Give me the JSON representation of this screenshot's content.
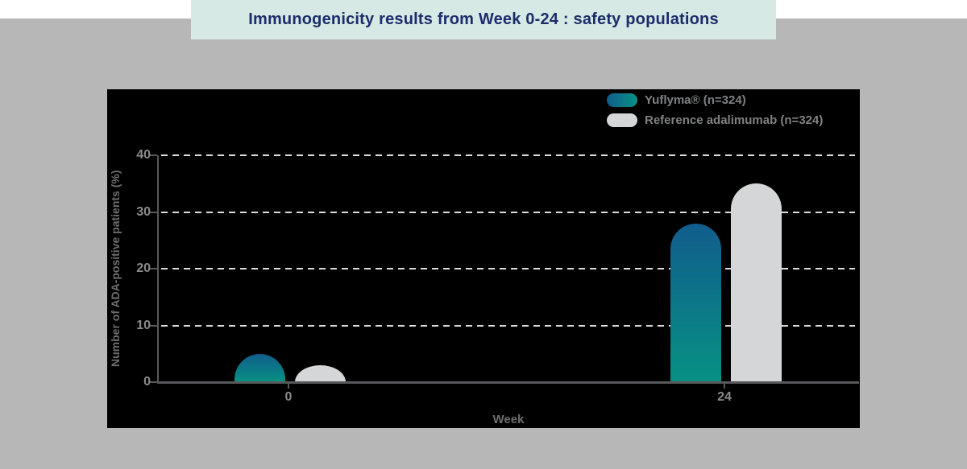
{
  "banner": {
    "title": "Immunogenicity results from Week 0-24 : safety populations",
    "bg_color": "#d6e9e4",
    "text_color": "#1b2d6b"
  },
  "chart_data": {
    "type": "bar",
    "title": "Immunogenicity results from Week 0-24 : safety populations",
    "categories": [
      "0",
      "24"
    ],
    "series": [
      {
        "name": "Yuflyma® (n=324)",
        "values": [
          5,
          28
        ],
        "color_top": "#115d8c",
        "color_bottom": "#079183"
      },
      {
        "name": "Reference adalimumab (n=324)",
        "values": [
          3,
          35
        ],
        "color": "#d4d6d7"
      }
    ],
    "xlabel": "Week",
    "ylabel": "Number of ADA-positive patients (%)",
    "ylim": [
      0,
      40
    ],
    "yticks": [
      0,
      10,
      20,
      30,
      40
    ],
    "grid": "horizontal-dashed",
    "legend_position": "top-right",
    "plot_bg": "#000000",
    "axis_color": "#58595b",
    "tick_label_color": "#8a8a8a",
    "gridline_color": "#dcdcdc",
    "outer_bg": "#b7b7b8"
  }
}
